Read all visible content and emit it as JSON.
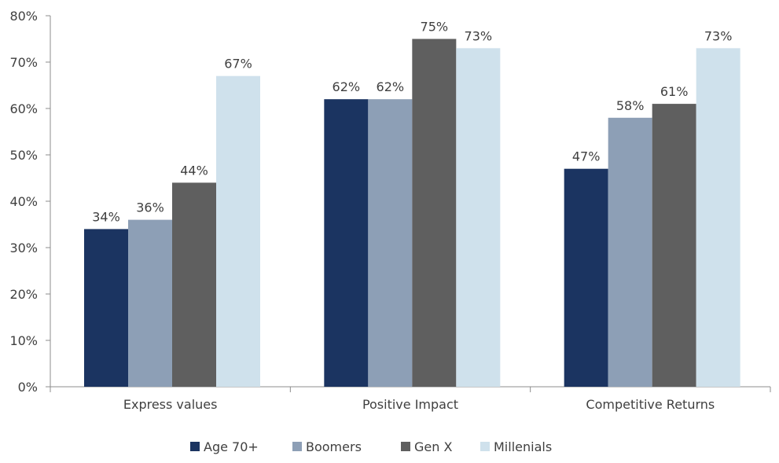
{
  "chart_data": {
    "type": "bar",
    "categories": [
      "Express values",
      "Positive Impact",
      "Competitive Returns"
    ],
    "series": [
      {
        "name": "Age 70+",
        "values": [
          34,
          62,
          47
        ],
        "color": "#1b3461"
      },
      {
        "name": "Boomers",
        "values": [
          36,
          62,
          58
        ],
        "color": "#8d9fb6"
      },
      {
        "name": "Gen X",
        "values": [
          44,
          75,
          61
        ],
        "color": "#5f5f5f"
      },
      {
        "name": "Millenials",
        "values": [
          67,
          73,
          73
        ],
        "color": "#cfe1ec"
      }
    ],
    "data_labels": [
      [
        "34%",
        "62%",
        "47%"
      ],
      [
        "36%",
        "62%",
        "58%"
      ],
      [
        "44%",
        "75%",
        "61%"
      ],
      [
        "67%",
        "73%",
        "73%"
      ]
    ],
    "y_ticks": [
      0,
      10,
      20,
      30,
      40,
      50,
      60,
      70,
      80
    ],
    "y_tick_labels": [
      "0%",
      "10%",
      "20%",
      "30%",
      "40%",
      "50%",
      "60%",
      "70%",
      "80%"
    ],
    "ylim": [
      0,
      80
    ],
    "title": "",
    "xlabel": "",
    "ylabel": "",
    "grid": false,
    "legend_position": "bottom",
    "axis_color": "#8c8c8c",
    "text_color": "#404040"
  }
}
